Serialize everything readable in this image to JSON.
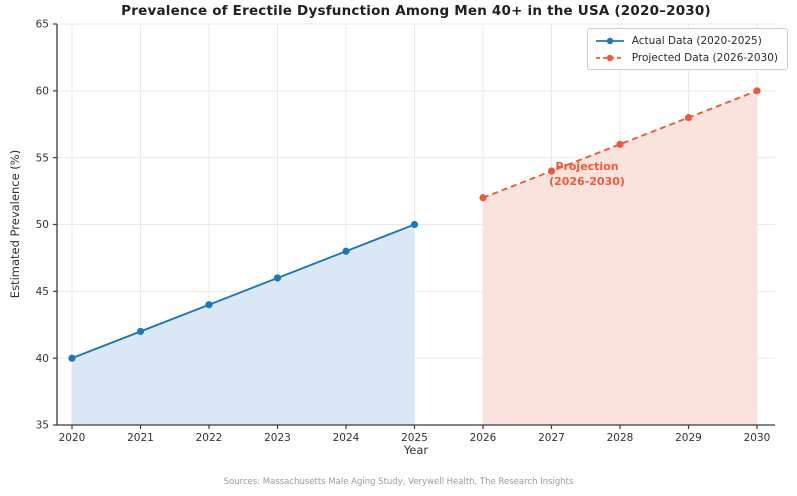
{
  "chart_data": {
    "type": "line",
    "title": "Prevalence of Erectile Dysfunction Among Men 40+ in the USA (2020–2030)",
    "xlabel": "Year",
    "ylabel": "Estimated Prevalence (%)",
    "xticks": [
      2020,
      2021,
      2022,
      2023,
      2024,
      2025,
      2026,
      2027,
      2028,
      2029,
      2030
    ],
    "yticks": [
      35,
      40,
      45,
      50,
      55,
      60,
      65
    ],
    "ylim": [
      35,
      65
    ],
    "grid": true,
    "legend_position": "upper right",
    "series": [
      {
        "name": "Actual Data (2020-2025)",
        "x": [
          2020,
          2021,
          2022,
          2023,
          2024,
          2025
        ],
        "values": [
          40,
          42,
          44,
          46,
          48,
          50
        ],
        "color": "#1f77b4",
        "fill": "#dbe9f6",
        "line_style": "solid",
        "marker": "circle"
      },
      {
        "name": "Projected Data (2026-2030)",
        "x": [
          2026,
          2027,
          2028,
          2029,
          2030
        ],
        "values": [
          52,
          54,
          56,
          58,
          60
        ],
        "color": "#ee593c",
        "fill": "#fbe3dd",
        "line_style": "dashed",
        "marker": "circle"
      }
    ],
    "annotation": {
      "line1": "Projection",
      "line2": "(2026-2030)",
      "color": "#ee593c",
      "x": 2027,
      "y": 54
    },
    "source": "Sources: Massachusetts Male Aging Study, Verywell Health, The Research Insights"
  }
}
